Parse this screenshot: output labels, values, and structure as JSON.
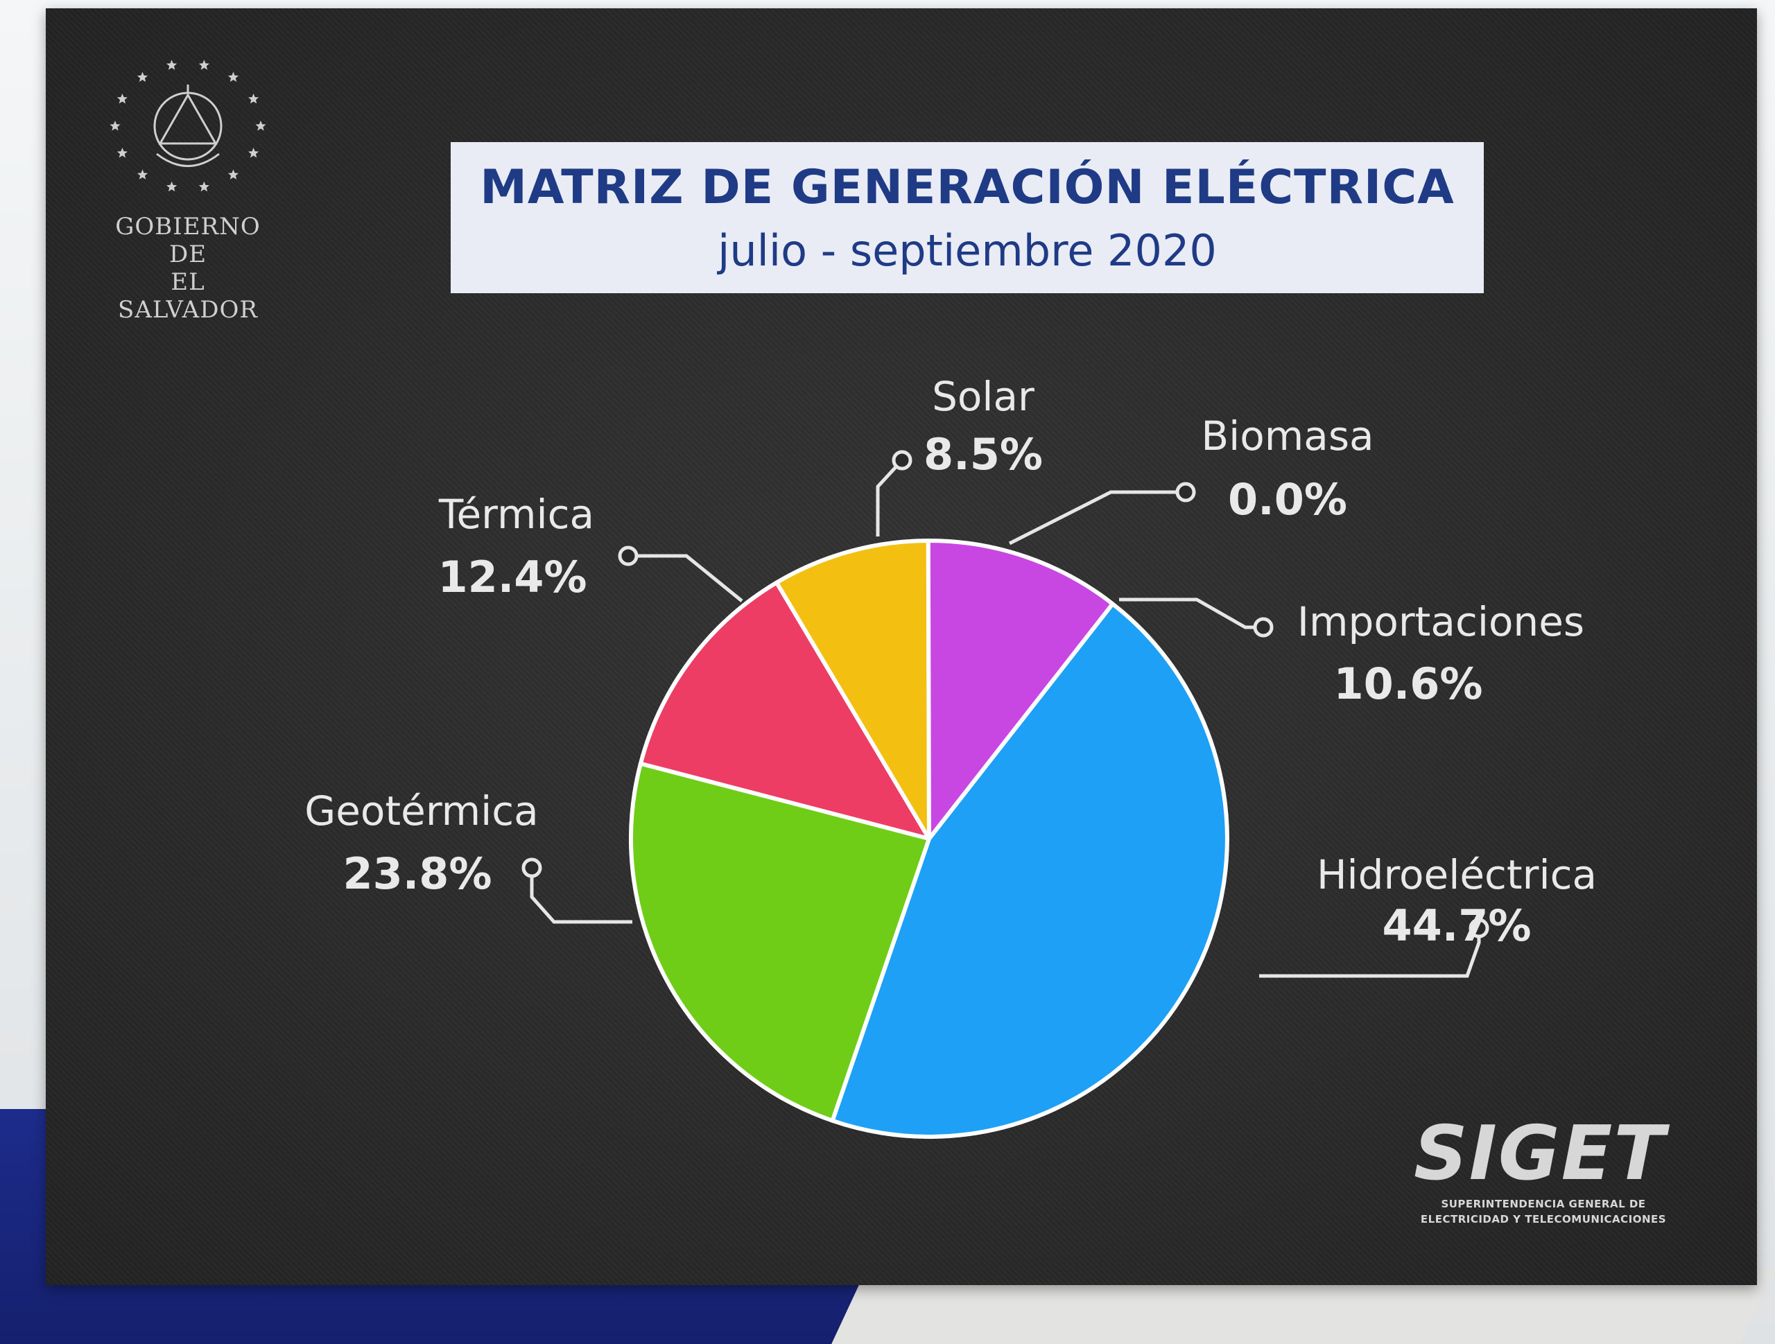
{
  "header": {
    "org_name": "GOBIERNO DE\nEL SALVADOR",
    "title": "MATRIZ DE GENERACIÓN ELÉCTRICA",
    "subtitle": "julio - septiembre 2020"
  },
  "footer": {
    "logo_text": "SIGET",
    "logo_line1": "SUPERINTENDENCIA GENERAL DE",
    "logo_line2": "ELECTRICIDAD Y TELECOMUNICACIONES"
  },
  "chart_data": {
    "type": "pie",
    "title": "MATRIZ DE GENERACIÓN ELÉCTRICA",
    "subtitle": "julio - septiembre 2020",
    "slices": [
      {
        "name": "Hidroeléctrica",
        "value": 44.7,
        "label": "44.7%",
        "color": "#1ea0f7"
      },
      {
        "name": "Geotérmica",
        "value": 23.8,
        "label": "23.8%",
        "color": "#6fcd18"
      },
      {
        "name": "Térmica",
        "value": 12.4,
        "label": "12.4%",
        "color": "#ed3d64"
      },
      {
        "name": "Solar",
        "value": 8.5,
        "label": "8.5%",
        "color": "#f3bf10"
      },
      {
        "name": "Biomasa",
        "value": 0.0,
        "label": "0.0%",
        "color": "#ffffff"
      },
      {
        "name": "Importaciones",
        "value": 10.6,
        "label": "10.6%",
        "color": "#c846e2"
      }
    ]
  }
}
